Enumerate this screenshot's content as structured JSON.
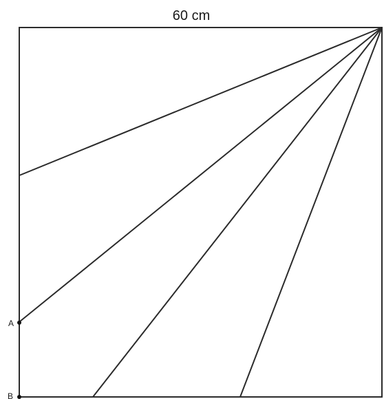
{
  "diagram": {
    "top_side_label": "60 cm",
    "points": {
      "a": {
        "label": "A"
      },
      "b": {
        "label": "B"
      }
    }
  }
}
